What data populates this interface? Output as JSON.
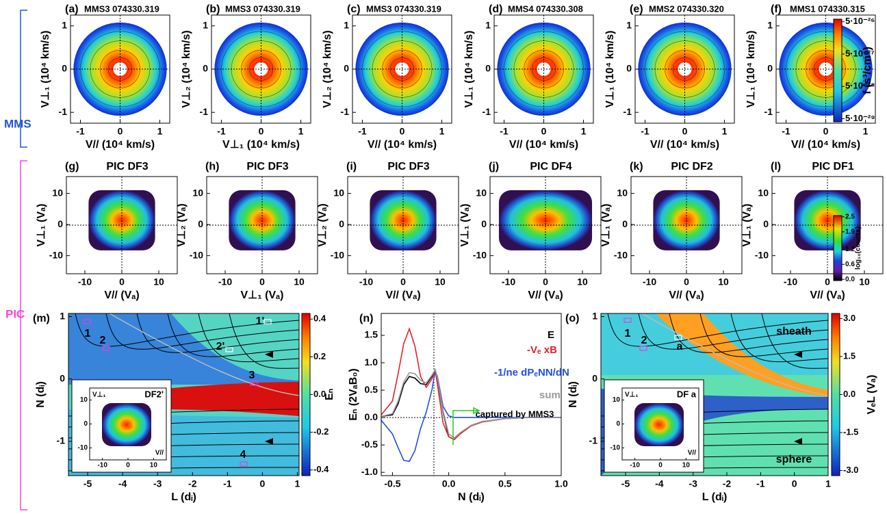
{
  "group_labels": [
    "MMS",
    "PIC"
  ],
  "chart_data": [
    {
      "type": "heatmap",
      "panel_label": "(a)",
      "title": "MMS3 074330.319",
      "xlabel": "V// (10⁴ km/s)",
      "ylabel": "V⊥₁ (10⁴ km/s)",
      "xlim": [
        -1.25,
        1.25
      ],
      "ylim": [
        -1.25,
        1.25
      ],
      "xticks": [
        -1,
        0,
        1
      ],
      "yticks": [
        -1,
        0,
        1
      ]
    },
    {
      "type": "heatmap",
      "panel_label": "(b)",
      "title": "MMS3 074330.319",
      "xlabel": "V⊥₁ (10⁴ km/s)",
      "ylabel": "V⊥₂ (10⁴ km/s)",
      "xlim": [
        -1.25,
        1.25
      ],
      "ylim": [
        -1.25,
        1.25
      ],
      "xticks": [
        -1,
        0,
        1
      ],
      "yticks": [
        -1,
        0,
        1
      ]
    },
    {
      "type": "heatmap",
      "panel_label": "(c)",
      "title": "MMS3 074330.319",
      "xlabel": "V// (10⁴ km/s)",
      "ylabel": "V⊥₂ (10⁴ km/s)",
      "xlim": [
        -1.25,
        1.25
      ],
      "ylim": [
        -1.25,
        1.25
      ],
      "xticks": [
        -1,
        0,
        1
      ],
      "yticks": [
        -1,
        0,
        1
      ]
    },
    {
      "type": "heatmap",
      "panel_label": "(d)",
      "title": "MMS4 074330.308",
      "xlabel": "V// (10⁴ km/s)",
      "ylabel": "V⊥₁ (10⁴ km/s)",
      "xlim": [
        -1.25,
        1.25
      ],
      "ylim": [
        -1.25,
        1.25
      ],
      "xticks": [
        -1,
        0,
        1
      ],
      "yticks": [
        -1,
        0,
        1
      ]
    },
    {
      "type": "heatmap",
      "panel_label": "(e)",
      "title": "MMS2 074330.320",
      "xlabel": "V// (10⁴ km/s)",
      "ylabel": "V⊥₁ (10⁴ km/s)",
      "xlim": [
        -1.25,
        1.25
      ],
      "ylim": [
        -1.25,
        1.25
      ],
      "xticks": [
        -1,
        0,
        1
      ],
      "yticks": [
        -1,
        0,
        1
      ]
    },
    {
      "type": "heatmap",
      "panel_label": "(f)",
      "title": "MMS1 074330.315",
      "xlabel": "V// (10⁴ km/s)",
      "ylabel": "V⊥₁ (10⁴ km/s)",
      "xlim": [
        -1.25,
        1.25
      ],
      "ylim": [
        -1.25,
        1.25
      ],
      "xticks": [
        -1,
        0,
        1
      ],
      "yticks": [
        -1,
        0,
        1
      ],
      "colorbar": {
        "label": "f (s³/cm⁶)",
        "log": true,
        "lim": [
          4e-29,
          6e-26
        ],
        "ticks": [
          {
            "value": 5e-26,
            "label": "5·10⁻²⁶"
          },
          {
            "value": 5e-27,
            "label": "5·10⁻²⁷"
          },
          {
            "value": 5e-28,
            "label": "5·10⁻²⁸"
          },
          {
            "value": 5e-29,
            "label": "5·10⁻²⁹"
          }
        ]
      }
    },
    {
      "type": "heatmap",
      "panel_label": "(g)",
      "title": "PIC DF3",
      "xlabel": "V// (Vₐ)",
      "ylabel": "V⊥₁ (Vₐ)",
      "xlim": [
        -15,
        15
      ],
      "ylim": [
        -15.8,
        15.4
      ],
      "xticks": [
        -10,
        0,
        10
      ],
      "yticks": [
        -10,
        0,
        10
      ]
    },
    {
      "type": "heatmap",
      "panel_label": "(h)",
      "title": "PIC DF3",
      "xlabel": "V⊥₁ (Vₐ)",
      "ylabel": "V⊥₂ (Vₐ)",
      "xlim": [
        -15,
        15
      ],
      "ylim": [
        -15.8,
        15.4
      ],
      "xticks": [
        -10,
        0,
        10
      ],
      "yticks": [
        -10,
        0,
        10
      ]
    },
    {
      "type": "heatmap",
      "panel_label": "(i)",
      "title": "PIC DF3",
      "xlabel": "V// (Vₐ)",
      "ylabel": "V⊥₂ (Vₐ)",
      "xlim": [
        -15,
        15
      ],
      "ylim": [
        -15.8,
        15.4
      ],
      "xticks": [
        -10,
        0,
        10
      ],
      "yticks": [
        -10,
        0,
        10
      ]
    },
    {
      "type": "heatmap",
      "panel_label": "(j)",
      "title": "PIC DF4",
      "xlabel": "V// (Vₐ)",
      "ylabel": "V⊥₁ (Vₐ)",
      "xlim": [
        -15,
        15
      ],
      "ylim": [
        -15.8,
        15.4
      ],
      "xticks": [
        -10,
        0,
        10
      ],
      "yticks": [
        -10,
        0,
        10
      ]
    },
    {
      "type": "heatmap",
      "panel_label": "(k)",
      "title": "PIC DF2",
      "xlabel": "V// (Vₐ)",
      "ylabel": "V⊥₁ (Vₐ)",
      "xlim": [
        -15,
        15
      ],
      "ylim": [
        -15.8,
        15.4
      ],
      "xticks": [
        -10,
        0,
        10
      ],
      "yticks": [
        -10,
        0,
        10
      ]
    },
    {
      "type": "heatmap",
      "panel_label": "(l)",
      "title": "PIC DF1",
      "xlabel": "V// (Vₐ)",
      "ylabel": "V⊥₁ (Vₐ)",
      "xlim": [
        -15,
        15
      ],
      "ylim": [
        -15.8,
        15.4
      ],
      "xticks": [
        -10,
        0,
        10
      ],
      "yticks": [
        -10,
        0,
        10
      ],
      "colorbar": {
        "label": "log₁₀(counts)",
        "log": false,
        "lim": [
          -0.05,
          2.55
        ],
        "ticks": [
          2.5,
          1.9,
          1.2,
          0.6,
          {
            "value": 0,
            "label": "0.0"
          }
        ]
      }
    },
    {
      "type": "heatmap",
      "panel_label": "(m)",
      "xlabel": "L (dᵢ)",
      "ylabel": "N (dᵢ)",
      "xlim": [
        -5.55,
        1.05
      ],
      "ylim": [
        -1.55,
        1.05
      ],
      "xticks": [
        -5,
        -4,
        -3,
        -2,
        -1,
        0,
        1
      ],
      "yticks": [
        -1,
        0,
        1
      ],
      "colorbar": {
        "label": "Eₙ",
        "log": false,
        "lim": [
          -0.43,
          0.43
        ],
        "ticks": [
          0.4,
          0.2,
          {
            "value": 0,
            "label": "0.0"
          },
          -0.2,
          -0.4
        ]
      },
      "annotations": [
        "1",
        "2",
        "2'",
        "3",
        "4",
        "1'"
      ],
      "inset": {
        "label": "DF2'",
        "xlabel": "V//",
        "ylabel": "V⊥₁",
        "xlim": [
          -15,
          15
        ],
        "ylim": [
          -15,
          15
        ],
        "xticks": [
          -10,
          0,
          10
        ],
        "yticks": [
          -10,
          0,
          10
        ]
      }
    },
    {
      "type": "line",
      "panel_label": "(n)",
      "xlabel": "N (dᵢ)",
      "ylabel": "Eₙ (2VₐB₀)",
      "xlim": [
        -0.6,
        1.0
      ],
      "ylim": [
        -1.06,
        1.9
      ],
      "xticks": [
        -0.5,
        {
          "value": 0,
          "label": "0.0"
        },
        0.5,
        {
          "value": 1,
          "label": "1.0"
        }
      ],
      "yticks": [
        1.5,
        {
          "value": 1,
          "label": "1.0"
        },
        0.5,
        {
          "value": 0,
          "label": "0.0"
        },
        -0.5,
        {
          "value": -1,
          "label": "-1.0"
        }
      ],
      "x": [
        -0.6,
        -0.5,
        -0.45,
        -0.4,
        -0.35,
        -0.3,
        -0.25,
        -0.2,
        -0.15,
        -0.12,
        -0.1,
        -0.05,
        0,
        0.05,
        0.1,
        0.2,
        0.3,
        0.5,
        0.7,
        1.0
      ],
      "series": [
        {
          "name": "E",
          "color": "#000000",
          "values": [
            0.02,
            0.05,
            0.25,
            0.6,
            0.75,
            0.72,
            0.62,
            0.6,
            0.75,
            0.87,
            0.7,
            0.1,
            -0.35,
            -0.4,
            -0.3,
            -0.15,
            -0.08,
            -0.02,
            0,
            0
          ]
        },
        {
          "name": "-Vₑ xB",
          "color": "#e8202a",
          "values": [
            0.05,
            0.3,
            0.8,
            1.35,
            1.62,
            1.3,
            0.75,
            0.55,
            0.7,
            0.85,
            0.6,
            -0.1,
            -0.35,
            -0.4,
            -0.3,
            -0.15,
            -0.08,
            -0.02,
            0,
            0
          ]
        },
        {
          "name": "-1/ne dPₑNN/dN",
          "color": "#2050e0",
          "values": [
            -0.05,
            -0.3,
            -0.55,
            -0.78,
            -0.8,
            -0.6,
            -0.2,
            0.1,
            0.5,
            0.85,
            0.75,
            0.2,
            0.03,
            0,
            0,
            0,
            0,
            0,
            0,
            0
          ]
        },
        {
          "name": "sum",
          "color": "#999999",
          "values": [
            0.02,
            0.07,
            0.3,
            0.65,
            0.82,
            0.8,
            0.68,
            0.63,
            0.77,
            0.88,
            0.72,
            0.12,
            -0.3,
            -0.37,
            -0.28,
            -0.14,
            -0.07,
            -0.02,
            0,
            0
          ]
        }
      ],
      "annotations": [
        "captured by MMS3"
      ]
    },
    {
      "type": "heatmap",
      "panel_label": "(o)",
      "xlabel": "L (dᵢ)",
      "ylabel": "N (dᵢ)",
      "xlim": [
        -5.73,
        1.0
      ],
      "ylim": [
        -1.55,
        1.05
      ],
      "xticks": [
        -5,
        -4,
        -3,
        -2,
        -1,
        0,
        1
      ],
      "yticks": [
        -1,
        0,
        1
      ],
      "colorbar": {
        "label": "VₑL (Vₐ)",
        "log": false,
        "lim": [
          -3.2,
          3.2
        ],
        "ticks": [
          {
            "value": 3,
            "label": "3.0"
          },
          1.5,
          {
            "value": 0,
            "label": "0.0"
          },
          -1.5,
          {
            "value": -3,
            "label": "-3.0"
          }
        ]
      },
      "annotations": [
        "1",
        "2",
        "a",
        "sheath",
        "sphere"
      ],
      "inset": {
        "label": "DF a",
        "xlabel": "V//",
        "ylabel": "V⊥₁",
        "xlim": [
          -15,
          15
        ],
        "ylim": [
          -15,
          15
        ],
        "xticks": [
          -10,
          0,
          10
        ],
        "yticks": [
          -10,
          0,
          10
        ]
      }
    }
  ]
}
